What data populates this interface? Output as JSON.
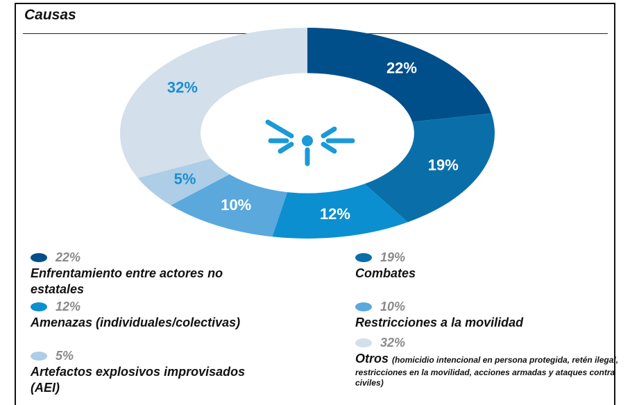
{
  "chart_data": {
    "type": "donut",
    "title": "Causas",
    "categories": [
      "Enfrentamiento entre actores no estatales",
      "Combates",
      "Amenazas (individuales/colectivas)",
      "Restricciones a la movilidad",
      "Artefactos explosivos improvisados (AEI)",
      "Otros"
    ],
    "values": [
      22,
      19,
      12,
      10,
      5,
      32
    ],
    "value_labels": [
      "22%",
      "19%",
      "12%",
      "10%",
      "5%",
      "32%"
    ],
    "colors": [
      "#004f8a",
      "#0a6fa8",
      "#0b8fd0",
      "#5aa8dc",
      "#aecde6",
      "#d3dfea"
    ],
    "label_colors": [
      "#ffffff",
      "#ffffff",
      "#ffffff",
      "#ffffff",
      "#1a8fd0",
      "#1a8fd0"
    ],
    "annotation": "(homicidio intencional en persona protegida, retén ilegal, restricciones en la movilidad, acciones armadas y ataques contra civiles)"
  }
}
